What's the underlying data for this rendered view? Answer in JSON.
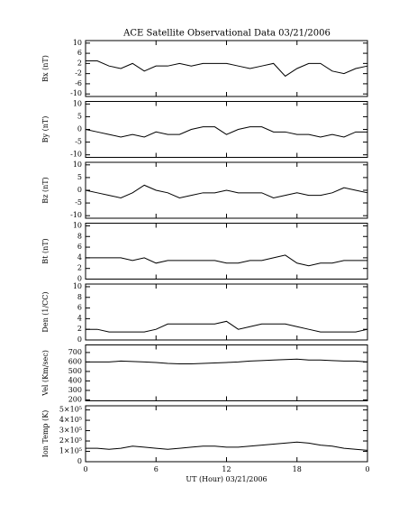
{
  "chart_data": [
    {
      "type": "line",
      "title": "ACE Satellite Observational Data   03/21/2006",
      "ylabel": "Bx (nT)",
      "x": [
        0,
        1,
        2,
        3,
        4,
        5,
        6,
        7,
        8,
        9,
        10,
        11,
        12,
        13,
        14,
        15,
        16,
        17,
        18,
        19,
        20,
        21,
        22,
        23,
        24
      ],
      "values": [
        3,
        3,
        1,
        0,
        2,
        -1,
        1,
        1,
        2,
        1,
        2,
        2,
        2,
        1,
        0,
        1,
        2,
        -3,
        0,
        2,
        2,
        -1,
        -2,
        0,
        1
      ],
      "color": "#000000",
      "ylim": [
        -11,
        11
      ],
      "yticks": [
        -10,
        -6,
        -2,
        2,
        6,
        10
      ]
    },
    {
      "type": "line",
      "ylabel": "By (nT)",
      "x": [
        0,
        1,
        2,
        3,
        4,
        5,
        6,
        7,
        8,
        9,
        10,
        11,
        12,
        13,
        14,
        15,
        16,
        17,
        18,
        19,
        20,
        21,
        22,
        23,
        24
      ],
      "values": [
        0,
        -1,
        -2,
        -3,
        -2,
        -3,
        -1,
        -2,
        -2,
        0,
        1,
        1,
        -2,
        0,
        1,
        1,
        -1,
        -1,
        -2,
        -2,
        -3,
        -2,
        -3,
        -1,
        -1
      ],
      "color": "#000000",
      "ylim": [
        -11,
        11
      ],
      "yticks": [
        -10,
        -5,
        0,
        5,
        10
      ]
    },
    {
      "type": "line",
      "ylabel": "Bz (nT)",
      "x": [
        0,
        1,
        2,
        3,
        4,
        5,
        6,
        7,
        8,
        9,
        10,
        11,
        12,
        13,
        14,
        15,
        16,
        17,
        18,
        19,
        20,
        21,
        22,
        23,
        24
      ],
      "values": [
        0,
        -1,
        -2,
        -3,
        -1,
        2,
        0,
        -1,
        -3,
        -2,
        -1,
        -1,
        0,
        -1,
        -1,
        -1,
        -3,
        -2,
        -1,
        -2,
        -2,
        -1,
        1,
        0,
        -1
      ],
      "color": "#000000",
      "ylim": [
        -11,
        11
      ],
      "yticks": [
        -10,
        -5,
        0,
        5,
        10
      ]
    },
    {
      "type": "line",
      "ylabel": "Bt (nT)",
      "x": [
        0,
        1,
        2,
        3,
        4,
        5,
        6,
        7,
        8,
        9,
        10,
        11,
        12,
        13,
        14,
        15,
        16,
        17,
        18,
        19,
        20,
        21,
        22,
        23,
        24
      ],
      "values": [
        4,
        4,
        4,
        4,
        3.5,
        4,
        3,
        3.5,
        3.5,
        3.5,
        3.5,
        3.5,
        3,
        3,
        3.5,
        3.5,
        4,
        4.5,
        3,
        2.5,
        3,
        3,
        3.5,
        3.5,
        3.5
      ],
      "color": "#000000",
      "ylim": [
        0,
        10.5
      ],
      "yticks": [
        0,
        2,
        4,
        6,
        8,
        10
      ]
    },
    {
      "type": "line",
      "ylabel": "Den (1/CC)",
      "x": [
        0,
        1,
        2,
        3,
        4,
        5,
        6,
        7,
        8,
        9,
        10,
        11,
        12,
        13,
        14,
        15,
        16,
        17,
        18,
        19,
        20,
        21,
        22,
        23,
        24
      ],
      "values": [
        2,
        2,
        1.5,
        1.5,
        1.5,
        1.5,
        2,
        3,
        3,
        3,
        3,
        3,
        3.5,
        2,
        2.5,
        3,
        3,
        3,
        2.5,
        2,
        1.5,
        1.5,
        1.5,
        1.5,
        2
      ],
      "color": "#000000",
      "ylim": [
        0,
        10.5
      ],
      "yticks": [
        0,
        2,
        4,
        6,
        8,
        10
      ]
    },
    {
      "type": "line",
      "ylabel": "Vel (Km/sec)",
      "x": [
        0,
        1,
        2,
        3,
        4,
        5,
        6,
        7,
        8,
        9,
        10,
        11,
        12,
        13,
        14,
        15,
        16,
        17,
        18,
        19,
        20,
        21,
        22,
        23,
        24
      ],
      "values": [
        600,
        600,
        600,
        610,
        605,
        600,
        595,
        585,
        580,
        580,
        585,
        590,
        595,
        600,
        610,
        615,
        620,
        625,
        630,
        620,
        620,
        615,
        610,
        610,
        600
      ],
      "color": "#000000",
      "ylim": [
        190,
        780
      ],
      "yticks": [
        200,
        300,
        400,
        500,
        600,
        700
      ]
    },
    {
      "type": "line",
      "ylabel": "Ion Temp (K)",
      "xlabel": "UT (Hour)   03/21/2006",
      "x": [
        0,
        1,
        2,
        3,
        4,
        5,
        6,
        7,
        8,
        9,
        10,
        11,
        12,
        13,
        14,
        15,
        16,
        17,
        18,
        19,
        20,
        21,
        22,
        23,
        24
      ],
      "values": [
        130000,
        130000,
        120000,
        130000,
        150000,
        140000,
        130000,
        120000,
        130000,
        140000,
        150000,
        150000,
        140000,
        140000,
        150000,
        160000,
        170000,
        180000,
        190000,
        180000,
        160000,
        150000,
        130000,
        120000,
        110000
      ],
      "color": "#000000",
      "ylim": [
        0,
        540000
      ],
      "yticks": [
        {
          "value": 0,
          "label": "0"
        },
        {
          "value": 100000,
          "label": "1×10⁵"
        },
        {
          "value": 200000,
          "label": "2×10⁵"
        },
        {
          "value": 300000,
          "label": "3×10⁵"
        },
        {
          "value": 400000,
          "label": "4×10⁵"
        },
        {
          "value": 500000,
          "label": "5×10⁵"
        }
      ],
      "xlim": [
        0,
        24
      ],
      "xticks": [
        0,
        6,
        12,
        18,
        {
          "value": 24,
          "label": "0"
        }
      ]
    }
  ]
}
